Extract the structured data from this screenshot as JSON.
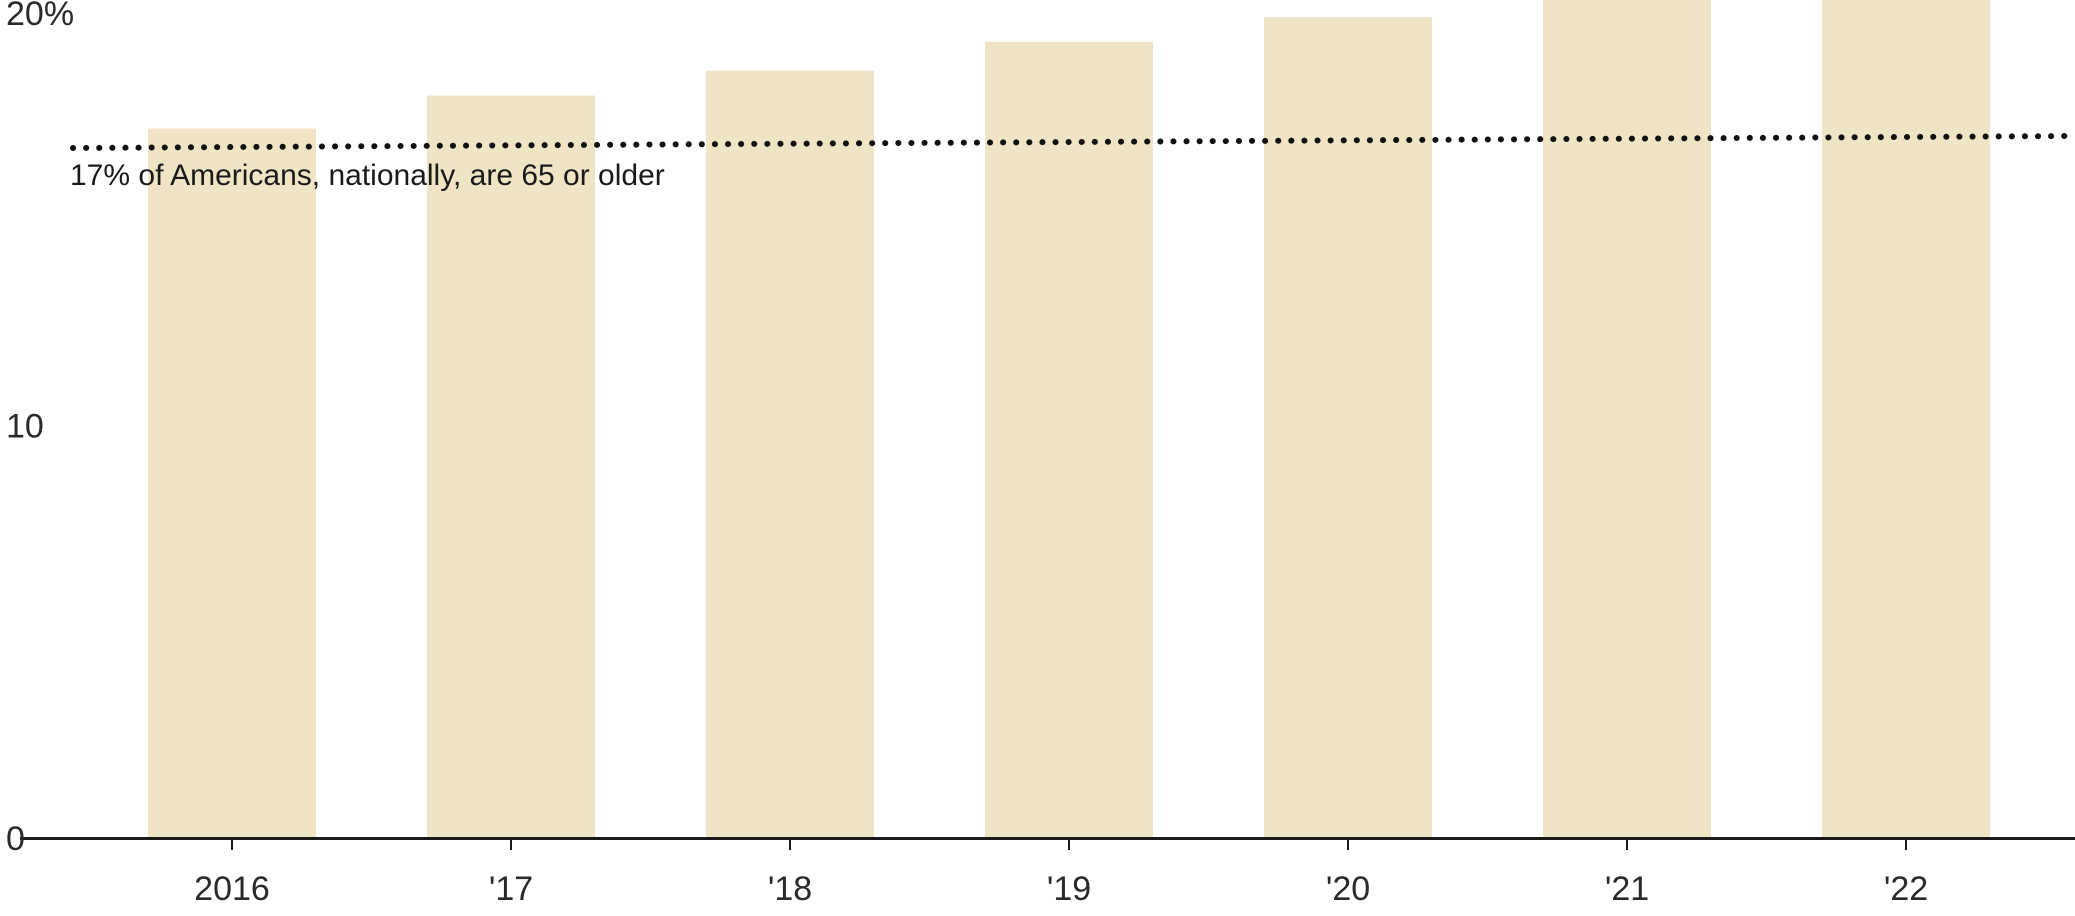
{
  "chart_data": {
    "type": "bar",
    "categories": [
      "2016",
      "'17",
      "'18",
      "'19",
      "'20",
      "'21",
      "'22"
    ],
    "values": [
      17.2,
      18.0,
      18.6,
      19.3,
      19.9,
      20.6,
      21.2
    ],
    "ylim": [
      0,
      20
    ],
    "y_ticks": [
      {
        "value": 0,
        "label": "0"
      },
      {
        "value": 10,
        "label": "10"
      },
      {
        "value": 20,
        "label": "20%"
      }
    ],
    "reference_line": {
      "value": 16.8,
      "label": "17% of Americans, nationally, are 65 or older",
      "style": "dotted"
    },
    "bar_color": "#efe5c5",
    "axis_color": "#1a1a1a",
    "grid": false,
    "legend": "none"
  }
}
